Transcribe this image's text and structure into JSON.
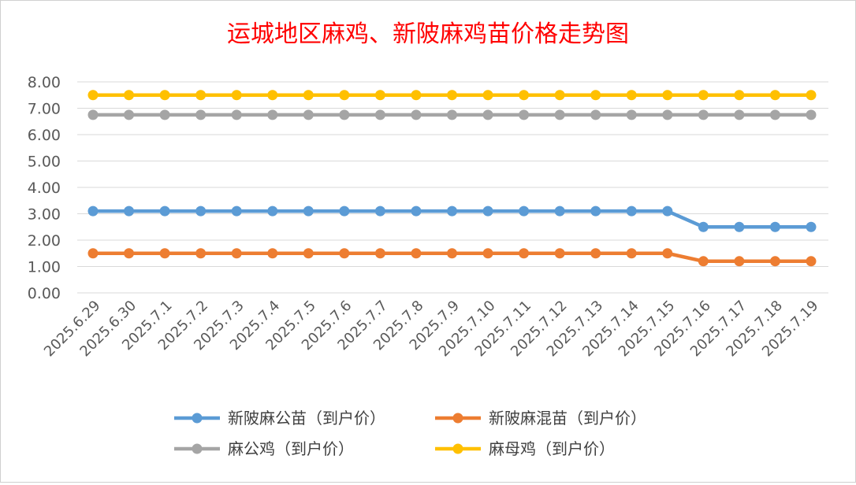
{
  "chart_data": {
    "type": "line",
    "title": "运城地区麻鸡、新陂麻鸡苗价格走势图",
    "title_color": "#FF0000",
    "xlabel": "",
    "ylabel": "",
    "ylim": [
      0,
      8
    ],
    "yticks": [
      "0.00",
      "1.00",
      "2.00",
      "3.00",
      "4.00",
      "5.00",
      "6.00",
      "7.00",
      "8.00"
    ],
    "grid": "horizontal",
    "legend_position": "bottom",
    "categories": [
      "2025.6.29",
      "2025.6.30",
      "2025.7.1",
      "2025.7.2",
      "2025.7.3",
      "2025.7.4",
      "2025.7.5",
      "2025.7.6",
      "2025.7.7",
      "2025.7.8",
      "2025.7.9",
      "2025.7.10",
      "2025.7.11",
      "2025.7.12",
      "2025.7.13",
      "2025.7.14",
      "2025.7.15",
      "2025.7.16",
      "2025.7.17",
      "2025.7.18",
      "2025.7.19"
    ],
    "series": [
      {
        "name": "新陂麻公苗（到户价）",
        "color": "#5B9BD5",
        "values": [
          3.1,
          3.1,
          3.1,
          3.1,
          3.1,
          3.1,
          3.1,
          3.1,
          3.1,
          3.1,
          3.1,
          3.1,
          3.1,
          3.1,
          3.1,
          3.1,
          3.1,
          2.5,
          2.5,
          2.5,
          2.5
        ]
      },
      {
        "name": "新陂麻混苗（到户价）",
        "color": "#ED7D31",
        "values": [
          1.5,
          1.5,
          1.5,
          1.5,
          1.5,
          1.5,
          1.5,
          1.5,
          1.5,
          1.5,
          1.5,
          1.5,
          1.5,
          1.5,
          1.5,
          1.5,
          1.5,
          1.2,
          1.2,
          1.2,
          1.2
        ]
      },
      {
        "name": "麻公鸡（到户价）",
        "color": "#A5A5A5",
        "values": [
          6.75,
          6.75,
          6.75,
          6.75,
          6.75,
          6.75,
          6.75,
          6.75,
          6.75,
          6.75,
          6.75,
          6.75,
          6.75,
          6.75,
          6.75,
          6.75,
          6.75,
          6.75,
          6.75,
          6.75,
          6.75
        ]
      },
      {
        "name": "麻母鸡（到户价）",
        "color": "#FFC000",
        "values": [
          7.5,
          7.5,
          7.5,
          7.5,
          7.5,
          7.5,
          7.5,
          7.5,
          7.5,
          7.5,
          7.5,
          7.5,
          7.5,
          7.5,
          7.5,
          7.5,
          7.5,
          7.5,
          7.5,
          7.5,
          7.5
        ]
      }
    ]
  }
}
